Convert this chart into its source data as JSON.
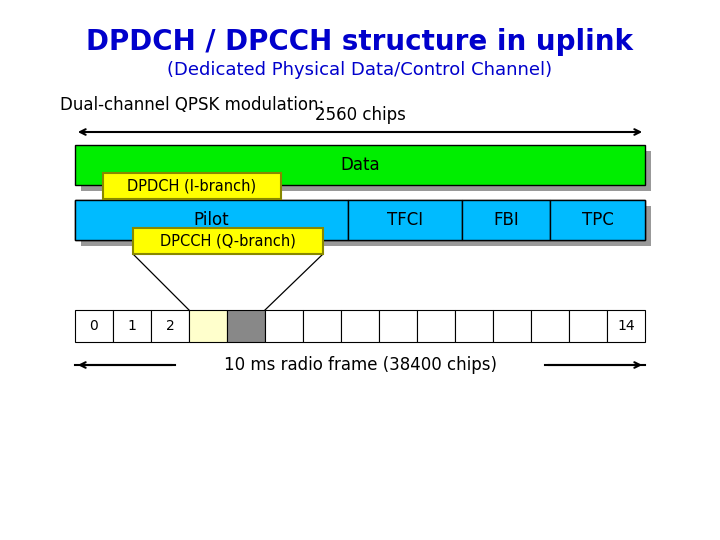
{
  "title": "DPDCH / DPCCH structure in uplink",
  "subtitle": "(Dedicated Physical Data/Control Channel)",
  "dual_channel_label": "Dual-channel QPSK modulation:",
  "chips_label": "2560 chips",
  "radio_frame_label": "10 ms radio frame (38400 chips)",
  "title_color": "#0000CC",
  "subtitle_color": "#0000CC",
  "bg_color": "#FFFFFF",
  "dpdch_box_color": "#00EE00",
  "dpcch_box_color": "#00BBFF",
  "yellow_label_color": "#FFFF00",
  "shadow_color": "#999999",
  "data_label": "Data",
  "dpdch_label": "DPDCH (I-branch)",
  "pilot_label": "Pilot",
  "tfci_label": "TFCI",
  "fbi_label": "FBI",
  "tpc_label": "TPC",
  "dpcch_label": "DPCCH (Q-branch)",
  "slot_highlight_color": "#FFFFCC",
  "slot_shadow_color": "#888888",
  "num_slots": 15,
  "fig_w": 7.2,
  "fig_h": 5.4,
  "dpi": 100
}
